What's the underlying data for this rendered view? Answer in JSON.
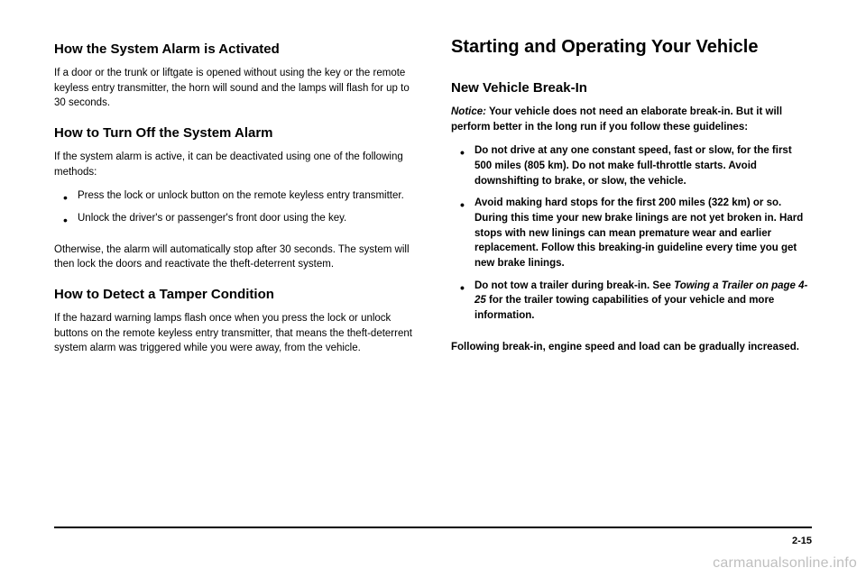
{
  "left": {
    "h3a": "How the System Alarm is Activated",
    "p1": "If a door or the trunk or liftgate is opened without using the key or the remote keyless entry transmitter, the horn will sound and the lamps will flash for up to 30 seconds.",
    "h3b": "How to Turn Off the System Alarm",
    "p2": "If the system alarm is active, it can be deactivated using one of the following methods:",
    "bullets": [
      "Press the lock or unlock button on the remote keyless entry transmitter.",
      "Unlock the driver's or passenger's front door using the key."
    ],
    "p3": "Otherwise, the alarm will automatically stop after 30 seconds. The system will then lock the doors and reactivate the theft-deterrent system.",
    "h3c": "How to Detect a Tamper Condition",
    "p4": "If the hazard warning lamps flash once when you press the lock or unlock buttons on the remote keyless entry transmitter, that means the theft-deterrent system alarm was triggered while you were away, from the vehicle."
  },
  "right": {
    "h2": "Starting and Operating Your Vehicle",
    "h3a": "New Vehicle Break-In",
    "notice_lead": "Notice:",
    "notice_body": "Your vehicle does not need an elaborate break-in. But it will perform better in the long run if you follow these guidelines:",
    "bullets": [
      "Do not drive at any one constant speed, fast or slow, for the first 500 miles (805 km). Do not make full-throttle starts. Avoid downshifting to brake, or slow, the vehicle.",
      "Avoid making hard stops for the first 200 miles (322 km) or so. During this time your new brake linings are not yet broken in. Hard stops with new linings can mean premature wear and earlier replacement. Follow this breaking-in guideline every time you get new brake linings."
    ],
    "bullet3_pre": "Do not tow a trailer during break-in. See ",
    "bullet3_italic": "Towing a Trailer on page 4-25",
    "bullet3_post": " for the trailer towing capabilities of your vehicle and more information.",
    "p_after": "Following break-in, engine speed and load can be gradually increased."
  },
  "page_num": "2-15",
  "watermark": "carmanualsonline.info"
}
